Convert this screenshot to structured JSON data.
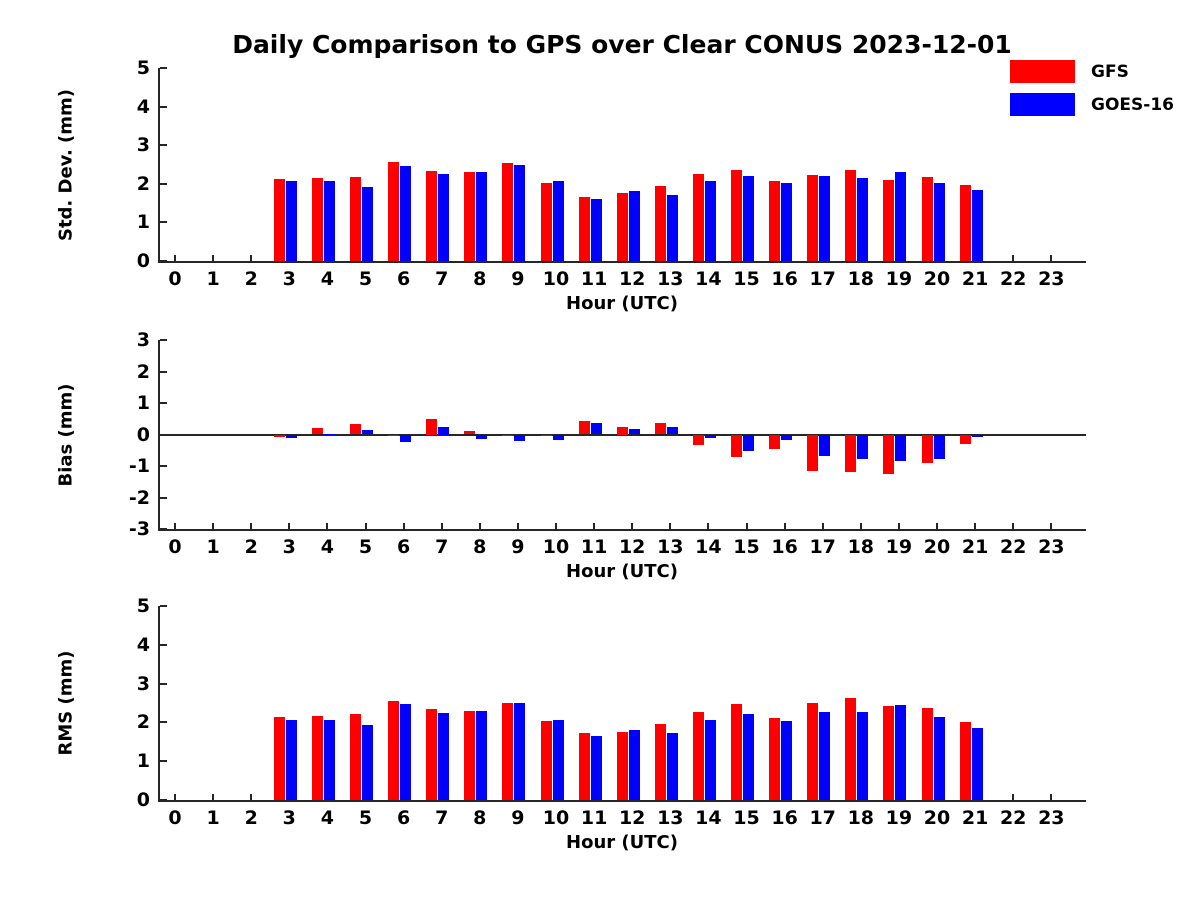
{
  "title": "Daily Comparison to GPS over Clear CONUS 2023-12-01",
  "legend": {
    "position": "top-right",
    "items": [
      {
        "label": "GFS",
        "color": "#ff0000"
      },
      {
        "label": "GOES-16",
        "color": "#0000ff"
      }
    ]
  },
  "colors": {
    "gfs": "#ff0000",
    "goes16": "#0000ff",
    "axis": "#262626",
    "text": "#000000",
    "background": "#ffffff"
  },
  "chart_data": [
    {
      "type": "bar",
      "panel": "stddev",
      "ylabel": "Std. Dev. (mm)",
      "xlabel": "Hour (UTC)",
      "ylim": [
        0,
        5
      ],
      "yticks": [
        0,
        1,
        2,
        3,
        4,
        5
      ],
      "x": [
        0,
        1,
        2,
        3,
        4,
        5,
        6,
        7,
        8,
        9,
        10,
        11,
        12,
        13,
        14,
        15,
        16,
        17,
        18,
        19,
        20,
        21,
        22,
        23
      ],
      "grid": false,
      "legend_position": "outside-top-right",
      "series": [
        {
          "name": "GFS",
          "color": "#ff0000",
          "values": [
            null,
            null,
            null,
            2.13,
            2.16,
            2.18,
            2.56,
            2.33,
            2.31,
            2.53,
            2.03,
            1.66,
            1.75,
            1.94,
            2.25,
            2.37,
            2.06,
            2.24,
            2.36,
            2.11,
            2.17,
            1.97,
            null,
            null
          ]
        },
        {
          "name": "GOES-16",
          "color": "#0000ff",
          "values": [
            null,
            null,
            null,
            2.06,
            2.08,
            1.93,
            2.47,
            2.25,
            2.31,
            2.49,
            2.08,
            1.61,
            1.81,
            1.7,
            2.06,
            2.2,
            2.03,
            2.21,
            2.16,
            2.3,
            2.03,
            1.84,
            null,
            null
          ]
        }
      ]
    },
    {
      "type": "bar",
      "panel": "bias",
      "ylabel": "Bias (mm)",
      "xlabel": "Hour (UTC)",
      "ylim": [
        -3,
        3
      ],
      "yticks": [
        -3,
        -2,
        -1,
        0,
        1,
        2,
        3
      ],
      "zero_line": true,
      "x": [
        0,
        1,
        2,
        3,
        4,
        5,
        6,
        7,
        8,
        9,
        10,
        11,
        12,
        13,
        14,
        15,
        16,
        17,
        18,
        19,
        20,
        21,
        22,
        23
      ],
      "grid": false,
      "series": [
        {
          "name": "GFS",
          "color": "#ff0000",
          "values": [
            null,
            null,
            null,
            -0.08,
            0.21,
            0.34,
            -0.02,
            0.5,
            0.1,
            -0.04,
            -0.02,
            0.42,
            0.25,
            0.37,
            -0.33,
            -0.72,
            -0.45,
            -1.15,
            -1.19,
            -1.25,
            -0.92,
            -0.29,
            null,
            null
          ]
        },
        {
          "name": "GOES-16",
          "color": "#0000ff",
          "values": [
            null,
            null,
            null,
            -0.12,
            0.02,
            0.13,
            -0.24,
            0.25,
            -0.14,
            -0.22,
            -0.17,
            0.35,
            0.19,
            0.24,
            -0.12,
            -0.51,
            -0.16,
            -0.69,
            -0.78,
            -0.84,
            -0.79,
            -0.08,
            null,
            null
          ]
        }
      ]
    },
    {
      "type": "bar",
      "panel": "rms",
      "ylabel": "RMS (mm)",
      "xlabel": "Hour (UTC)",
      "ylim": [
        0,
        5
      ],
      "yticks": [
        0,
        1,
        2,
        3,
        4,
        5
      ],
      "x": [
        0,
        1,
        2,
        3,
        4,
        5,
        6,
        7,
        8,
        9,
        10,
        11,
        12,
        13,
        14,
        15,
        16,
        17,
        18,
        19,
        20,
        21,
        22,
        23
      ],
      "grid": false,
      "series": [
        {
          "name": "GFS",
          "color": "#ff0000",
          "values": [
            null,
            null,
            null,
            2.13,
            2.16,
            2.21,
            2.55,
            2.34,
            2.3,
            2.5,
            2.03,
            1.72,
            1.76,
            1.95,
            2.26,
            2.47,
            2.12,
            2.49,
            2.63,
            2.42,
            2.36,
            2.0,
            null,
            null
          ]
        },
        {
          "name": "GOES-16",
          "color": "#0000ff",
          "values": [
            null,
            null,
            null,
            2.06,
            2.06,
            1.93,
            2.48,
            2.25,
            2.3,
            2.5,
            2.05,
            1.65,
            1.8,
            1.73,
            2.06,
            2.22,
            2.04,
            2.27,
            2.27,
            2.46,
            2.13,
            1.86,
            null,
            null
          ]
        }
      ]
    }
  ]
}
